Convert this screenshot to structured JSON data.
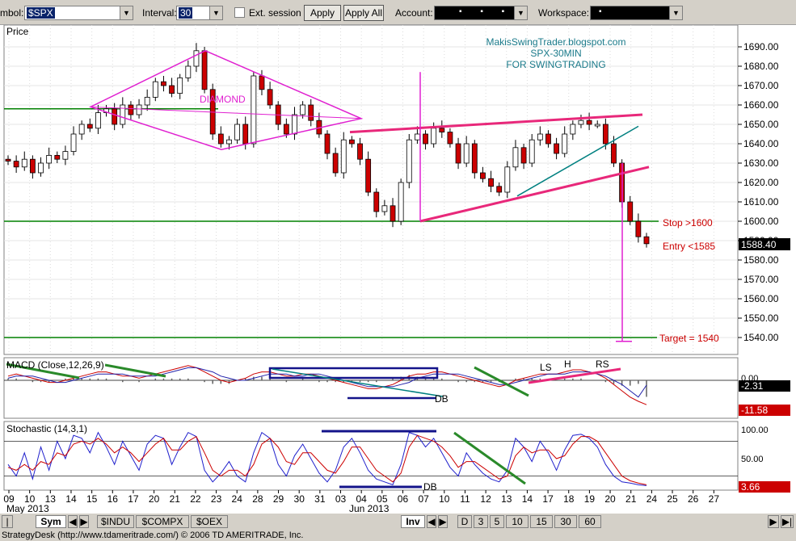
{
  "toolbar": {
    "symbol_label": "mbol:",
    "symbol_value": "$SPX",
    "interval_label": "Interval:",
    "interval_value": "30",
    "ext_session_label": "Ext. session",
    "apply_label": "Apply",
    "apply_all_label": "Apply All",
    "account_label": "Account:",
    "account_value": "▪ ▪ ▪",
    "workspace_label": "Workspace:",
    "workspace_value": "▪"
  },
  "chart_data": [
    {
      "type": "candlestick",
      "panel": "price",
      "title": "Price",
      "ylim": [
        1530,
        1698
      ],
      "yticks": [
        "1540.00",
        "1550.00",
        "1560.00",
        "1570.00",
        "1580.00",
        "1590.00",
        "1600.00",
        "1610.00",
        "1620.00",
        "1630.00",
        "1640.00",
        "1650.00",
        "1660.00",
        "1670.00",
        "1680.00",
        "1690.00"
      ],
      "last_price": "1588.40",
      "closes": [
        1631,
        1628,
        1632,
        1625,
        1630,
        1634,
        1632,
        1636,
        1645,
        1650,
        1648,
        1656,
        1658,
        1650,
        1660,
        1655,
        1660,
        1664,
        1672,
        1670,
        1666,
        1674,
        1680,
        1688,
        1668,
        1645,
        1640,
        1642,
        1650,
        1640,
        1675,
        1668,
        1660,
        1650,
        1645,
        1655,
        1660,
        1652,
        1645,
        1635,
        1625,
        1642,
        1640,
        1632,
        1615,
        1605,
        1608,
        1600,
        1620,
        1642,
        1645,
        1640,
        1648,
        1646,
        1640,
        1630,
        1640,
        1625,
        1622,
        1618,
        1615,
        1628,
        1638,
        1630,
        1642,
        1645,
        1640,
        1635,
        1645,
        1650,
        1652,
        1650,
        1650,
        1640,
        1630,
        1610,
        1600,
        1592,
        1588.4
      ],
      "annotations": [
        {
          "text": "MakisSwingTrader.blogspot.com"
        },
        {
          "text": "SPX-30MIN"
        },
        {
          "text": "FOR SWINGTRADING"
        },
        {
          "text": "DIAMOND"
        },
        {
          "text": "Stop >1600",
          "value": 1600
        },
        {
          "text": "Entry <1585",
          "value": 1585
        },
        {
          "text": "Target = 1540",
          "value": 1540
        }
      ],
      "levels": [
        1658,
        1600,
        1540
      ]
    },
    {
      "type": "line",
      "panel": "macd",
      "title": "MACD (Close,12,26,9)",
      "yticks": [
        "0.00"
      ],
      "values_shown": [
        "-2.31",
        "-11.58"
      ],
      "annotations": [
        "LS",
        "H",
        "RS",
        "DB"
      ],
      "macd": [
        2,
        3,
        2,
        1,
        0,
        -1,
        -1,
        0,
        1,
        2,
        3,
        4,
        4,
        3,
        2,
        2,
        1,
        2,
        3,
        4,
        5,
        6,
        7,
        6,
        4,
        2,
        0,
        -1,
        0,
        1,
        3,
        4,
        4,
        3,
        2,
        2,
        3,
        3,
        2,
        1,
        0,
        -1,
        -2,
        -3,
        -4,
        -4,
        -3,
        -2,
        0,
        2,
        3,
        3,
        4,
        4,
        3,
        2,
        1,
        0,
        -1,
        -2,
        -3,
        -2,
        0,
        1,
        2,
        3,
        3,
        3,
        4,
        5,
        5,
        4,
        3,
        1,
        -2,
        -5,
        -8,
        -10,
        -11.6
      ],
      "signal": [
        1,
        2,
        2,
        2,
        1,
        0,
        -1,
        -1,
        0,
        1,
        2,
        3,
        3,
        3,
        3,
        2,
        2,
        2,
        2,
        3,
        4,
        5,
        6,
        6,
        5,
        4,
        2,
        1,
        0,
        0,
        1,
        2,
        3,
        3,
        3,
        2,
        2,
        3,
        3,
        2,
        1,
        0,
        -1,
        -2,
        -3,
        -3,
        -3,
        -3,
        -2,
        -1,
        1,
        2,
        3,
        3,
        3,
        3,
        2,
        1,
        0,
        -1,
        -2,
        -2,
        -1,
        0,
        1,
        2,
        3,
        3,
        3,
        4,
        4,
        4,
        3,
        2,
        0,
        -2,
        -5,
        -8,
        -2.3
      ]
    },
    {
      "type": "line",
      "panel": "stochastic",
      "title": "Stochastic (14,3,1)",
      "yticks": [
        "100.00",
        "50.00"
      ],
      "value_shown": "3.66",
      "annotations": [
        "DB"
      ],
      "k": [
        40,
        20,
        60,
        15,
        70,
        30,
        80,
        50,
        90,
        85,
        60,
        95,
        70,
        40,
        80,
        55,
        30,
        75,
        90,
        85,
        40,
        70,
        95,
        88,
        30,
        10,
        25,
        45,
        20,
        10,
        60,
        95,
        85,
        40,
        20,
        55,
        75,
        50,
        25,
        10,
        30,
        70,
        85,
        60,
        30,
        15,
        10,
        5,
        40,
        95,
        90,
        70,
        85,
        60,
        35,
        20,
        60,
        40,
        25,
        15,
        10,
        30,
        85,
        70,
        45,
        80,
        60,
        30,
        65,
        90,
        92,
        85,
        70,
        40,
        20,
        10,
        8,
        5,
        3.66
      ],
      "d": [
        35,
        30,
        40,
        30,
        45,
        40,
        60,
        55,
        75,
        80,
        75,
        85,
        75,
        60,
        70,
        60,
        45,
        60,
        75,
        85,
        65,
        65,
        80,
        88,
        60,
        30,
        20,
        30,
        30,
        20,
        40,
        75,
        85,
        70,
        45,
        40,
        60,
        60,
        45,
        30,
        25,
        45,
        70,
        70,
        50,
        30,
        20,
        10,
        25,
        70,
        90,
        85,
        80,
        70,
        55,
        35,
        45,
        45,
        35,
        25,
        15,
        20,
        55,
        70,
        60,
        65,
        65,
        50,
        55,
        75,
        88,
        88,
        80,
        60,
        40,
        20,
        12,
        8,
        5
      ]
    }
  ],
  "x_axis": {
    "labels": [
      "09",
      "10",
      "13",
      "14",
      "15",
      "16",
      "17",
      "20",
      "21",
      "22",
      "23",
      "24",
      "28",
      "29",
      "30",
      "31",
      "03",
      "04",
      "05",
      "06",
      "07",
      "10",
      "11",
      "12",
      "13",
      "14",
      "17",
      "18",
      "19",
      "20",
      "21",
      "24",
      "25",
      "26",
      "27"
    ],
    "month_labels": [
      "May 2013",
      "Jun 2013"
    ]
  },
  "bottombar": {
    "sym_label": "Sym",
    "symbol_tabs": [
      "$INDU",
      "$COMPX",
      "$OEX"
    ],
    "inv_label": "Inv",
    "interval_tabs": [
      "D",
      "3",
      "5",
      "10",
      "15",
      "30",
      "60"
    ]
  },
  "status": "StrategyDesk (http://www.tdameritrade.com/) © 2006 TD AMERITRADE, Inc.",
  "colors": {
    "up_candle": "#ffffff",
    "down_candle": "#cc0000",
    "pattern": "#e020d0",
    "wedge": "#e8287a",
    "level": "#008000",
    "trend": "#008080",
    "macd_line": "#cc0000",
    "signal_line": "#2020aa",
    "annotation_blue": "#1a7a8a",
    "annotation_red": "#cc0000"
  }
}
